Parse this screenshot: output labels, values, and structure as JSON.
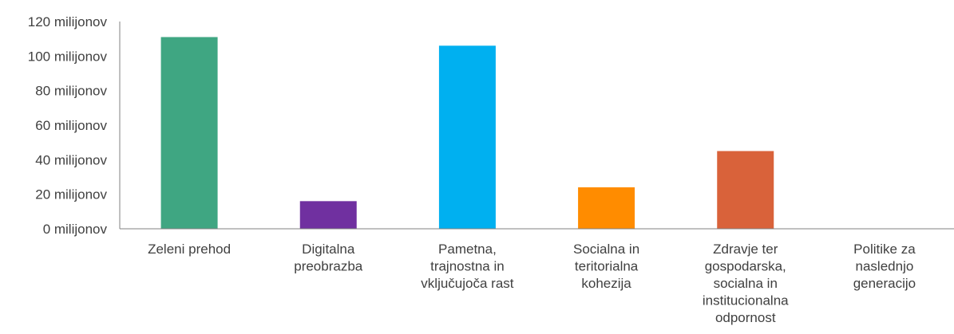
{
  "chart_data": {
    "type": "bar",
    "categories": [
      [
        "Zeleni prehod"
      ],
      [
        "Digitalna",
        "preobrazba"
      ],
      [
        "Pametna,",
        "trajnostna in",
        "vključujoča rast"
      ],
      [
        "Socialna in",
        "teritorialna",
        "kohezija"
      ],
      [
        "Zdravje ter",
        "gospodarska,",
        "socialna in",
        "institucionalna",
        "odpornost"
      ],
      [
        "Politike za",
        "naslednjo",
        "generacijo"
      ]
    ],
    "values": [
      111,
      16,
      106,
      24,
      45,
      0
    ],
    "colors": [
      "#3fa682",
      "#7030a0",
      "#00b0f0",
      "#ff8c00",
      "#d9623a",
      "#a0a0a0"
    ],
    "ylim": [
      0,
      120
    ],
    "yticks": [
      0,
      20,
      40,
      60,
      80,
      100,
      120
    ],
    "ytick_labels": [
      "0 milijonov",
      "20 milijonov",
      "40 milijonov",
      "60 milijonov",
      "80 milijonov",
      "100 milijonov",
      "120 milijonov"
    ],
    "grid": false,
    "title": "",
    "xlabel": "",
    "ylabel": ""
  }
}
